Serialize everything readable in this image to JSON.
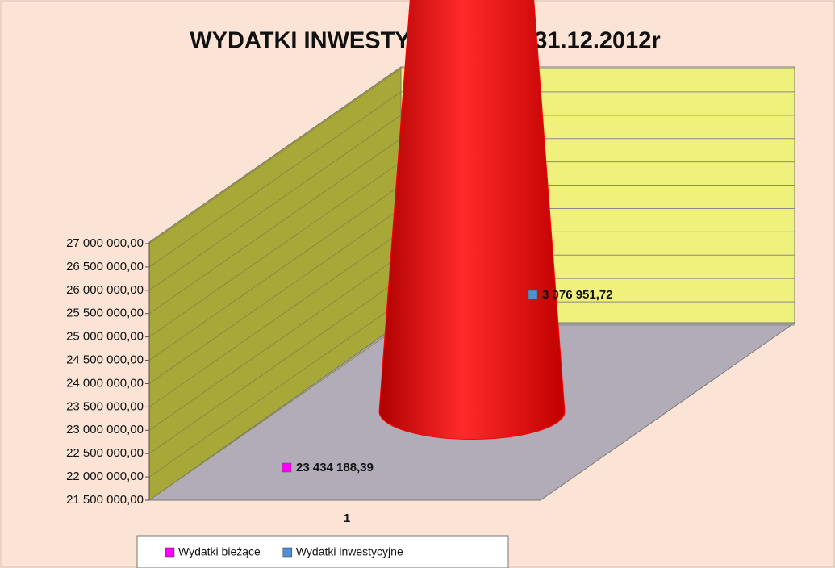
{
  "chart_data": {
    "type": "cone3d_stacked",
    "title": "WYDATKI  INWESTYCYJNE NA 31.12.2012r",
    "categories": [
      "1"
    ],
    "series": [
      {
        "name": "Wydatki bieżące",
        "color": "#ff0000",
        "legend_color": "#ff00ff",
        "values": [
          23434188.39
        ],
        "value_labels": [
          "23 434 188,39"
        ]
      },
      {
        "name": "Wydatki inwestycyjne",
        "color": "#4f8fd8",
        "legend_color": "#4f8fd8",
        "values": [
          3076951.72
        ],
        "value_labels": [
          "3 076 951,72"
        ]
      }
    ],
    "ylim": [
      21500000,
      27000000
    ],
    "yticks": [
      {
        "value": 21500000,
        "label": "21 500 000,00"
      },
      {
        "value": 22000000,
        "label": "22 000 000,00"
      },
      {
        "value": 22500000,
        "label": "22 500 000,00"
      },
      {
        "value": 23000000,
        "label": "23 000 000,00"
      },
      {
        "value": 23500000,
        "label": "23 500 000,00"
      },
      {
        "value": 24000000,
        "label": "24 000 000,00"
      },
      {
        "value": 24500000,
        "label": "24 500 000,00"
      },
      {
        "value": 25000000,
        "label": "25 000 000,00"
      },
      {
        "value": 25500000,
        "label": "25 500 000,00"
      },
      {
        "value": 26000000,
        "label": "26 000 000,00"
      },
      {
        "value": 26500000,
        "label": "26 500 000,00"
      },
      {
        "value": 27000000,
        "label": "27 000 000,00"
      }
    ],
    "grid": true,
    "legend": "bottom"
  }
}
